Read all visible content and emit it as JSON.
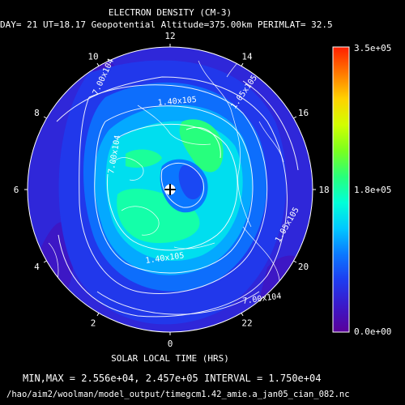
{
  "chart_data": {
    "type": "heatmap",
    "projection": "polar-stereographic",
    "title": "ELECTRON DENSITY (CM-3)",
    "subtitle": "DAY= 21 UT=18.17 Geopotential Altitude=375.00km PERIMLAT= 32.5",
    "xlabel": "SOLAR LOCAL TIME (HRS)",
    "local_time_labels": [
      "0",
      "2",
      "4",
      "6",
      "8",
      "10",
      "12",
      "14",
      "16",
      "18",
      "20",
      "22"
    ],
    "colorbar": {
      "max_label": "3.5e+05",
      "mid_label": "1.8e+05",
      "min_label": "0.0e+00",
      "range": [
        0,
        350000
      ],
      "colors": [
        "#5a009a",
        "#3b18c8",
        "#1e3cf0",
        "#0a78ff",
        "#00c8ff",
        "#00ffd8",
        "#28ff7a",
        "#7aff1e",
        "#d2ff00",
        "#ffd200",
        "#ff7800",
        "#ff1e00"
      ]
    },
    "contour_labels": [
      "7.00x10^4",
      "7.00x10^4",
      "1.40x10^5",
      "1.05x10^5",
      "1.40x10^5",
      "7.00x10^4",
      "1.05x10^5"
    ],
    "min_value": 25560,
    "max_value": 245700,
    "interval": 17500,
    "minmax_text": "MIN,MAX =  2.556e+04, 2.457e+05 INTERVAL =  1.750e+04",
    "file_path": "/hao/aim2/woolman/model_output/timegcm1.42_amie.a_jan05_cian_082.nc"
  }
}
